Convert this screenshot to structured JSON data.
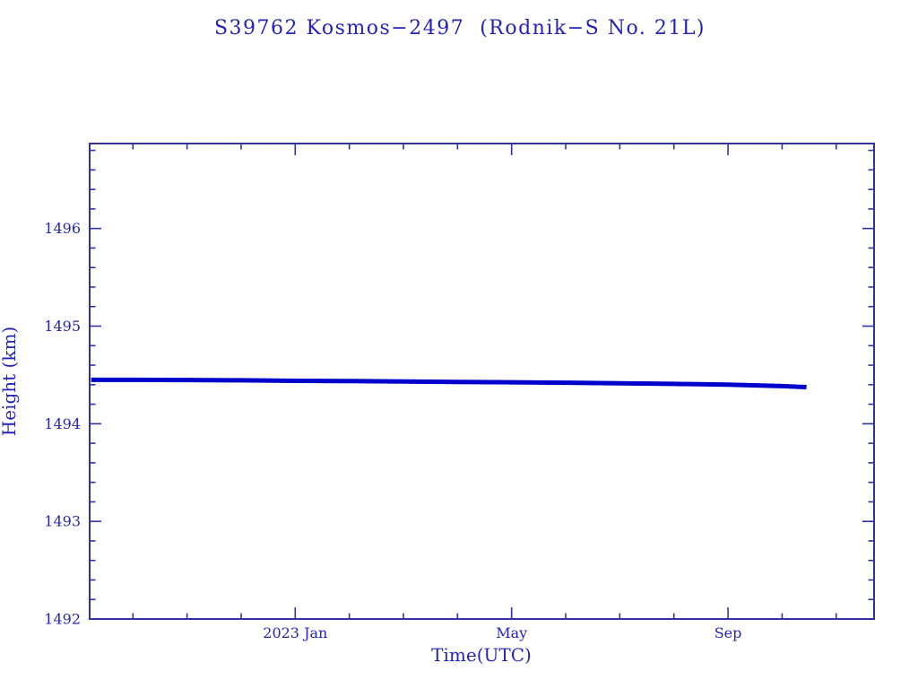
{
  "page": {
    "background": "#ffffff"
  },
  "colors": {
    "line": "#0000cc",
    "axis": "#32329e",
    "text": "#2424bb"
  },
  "chart_data": {
    "type": "line",
    "title": "S39762 Kosmos−2497  (Rodnik−S No. 21L)",
    "xlabel": "Time(UTC)",
    "ylabel": "Height (km)",
    "x_unit": "months since 2023-01-01",
    "xlim": [
      -3.8,
      10.7
    ],
    "ylim": [
      1492,
      1496.87
    ],
    "grid": false,
    "legend": "none",
    "x_ticks_major": [
      {
        "pos": 0,
        "label": "2023 Jan"
      },
      {
        "pos": 4,
        "label": "May"
      },
      {
        "pos": 8,
        "label": "Sep"
      }
    ],
    "x_minor_step_months": 1,
    "y_ticks_major": [
      {
        "v": 1492,
        "label": "1492"
      },
      {
        "v": 1493,
        "label": "1493"
      },
      {
        "v": 1494,
        "label": "1494"
      },
      {
        "v": 1495,
        "label": "1495"
      },
      {
        "v": 1496,
        "label": "1496"
      }
    ],
    "y_minor_step": 0.2,
    "series": [
      {
        "name": "height_km",
        "color": "#0000cc",
        "points": [
          [
            -3.77,
            1494.45
          ],
          [
            -3.0,
            1494.45
          ],
          [
            -2.0,
            1494.448
          ],
          [
            -1.0,
            1494.445
          ],
          [
            0.0,
            1494.44
          ],
          [
            1.0,
            1494.437
          ],
          [
            2.0,
            1494.432
          ],
          [
            3.0,
            1494.428
          ],
          [
            4.0,
            1494.425
          ],
          [
            5.0,
            1494.42
          ],
          [
            6.0,
            1494.415
          ],
          [
            7.0,
            1494.408
          ],
          [
            8.0,
            1494.4
          ],
          [
            9.0,
            1494.385
          ],
          [
            9.45,
            1494.375
          ]
        ]
      }
    ]
  }
}
